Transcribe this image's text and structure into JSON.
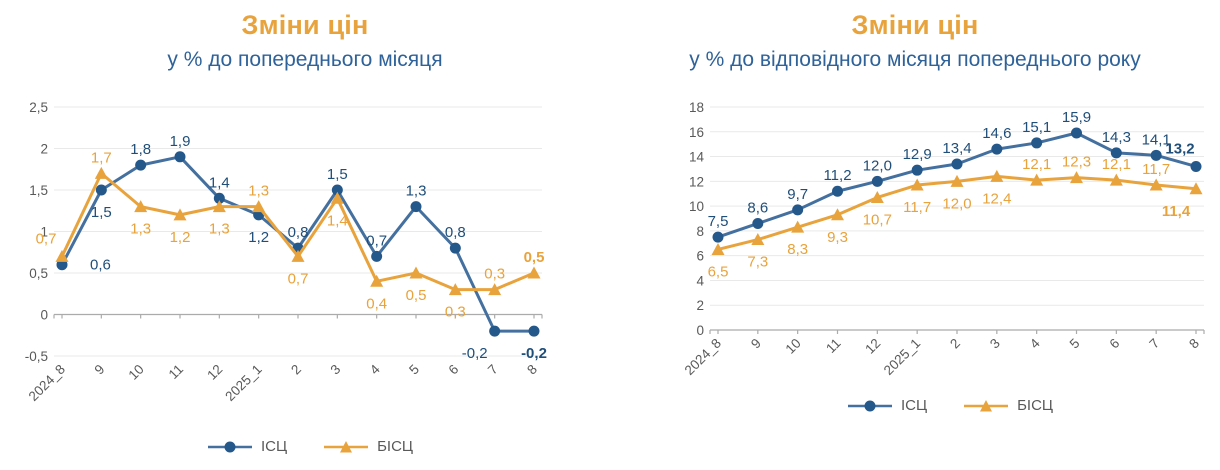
{
  "colors": {
    "title_orange": "#E8A33C",
    "subtitle_blue": "#2E6299",
    "series_blue_line": "#4470A0",
    "series_blue_marker": "#24578A",
    "series_blue_label": "#1F4E79",
    "series_orange": "#E8A33C",
    "axis_gray": "#ABABAB",
    "grid_gray": "#E9E9E9",
    "tick_text_gray": "#595959"
  },
  "chart_data": [
    {
      "type": "line",
      "title": "Зміни цін",
      "subtitle": "у % до попереднього місяця",
      "categories": [
        "2024_8",
        "9",
        "10",
        "11",
        "12",
        "2025_1",
        "2",
        "3",
        "4",
        "5",
        "6",
        "7",
        "8"
      ],
      "series": [
        {
          "name": "ІСЦ",
          "marker": "circle",
          "line_color": "#4470A0",
          "marker_color": "#24578A",
          "label_color": "#1F4E79",
          "values": [
            0.6,
            1.5,
            1.8,
            1.9,
            1.4,
            1.2,
            0.8,
            1.5,
            0.7,
            1.3,
            0.8,
            -0.2,
            -0.2
          ],
          "label_pos": [
            "right",
            "below",
            "above",
            "above",
            "above",
            "below",
            "above",
            "above",
            "above",
            "above",
            "above",
            "below-left",
            "below"
          ]
        },
        {
          "name": "БІСЦ",
          "marker": "triangle",
          "line_color": "#E8A33C",
          "marker_color": "#E8A33C",
          "label_color": "#E8A33C",
          "values": [
            0.7,
            1.7,
            1.3,
            1.2,
            1.3,
            1.3,
            0.7,
            1.4,
            0.4,
            0.5,
            0.3,
            0.3,
            0.5
          ],
          "label_pos": [
            "above-left",
            "above",
            "below",
            "below",
            "below",
            "above",
            "below",
            "below",
            "below",
            "below",
            "below",
            "above",
            "above"
          ]
        }
      ],
      "ylim": [
        -0.5,
        2.5
      ],
      "ytick_step": 0.5,
      "grid": true,
      "legend_position": "bottom",
      "bold_last_label": true
    },
    {
      "type": "line",
      "title": "Зміни цін",
      "subtitle": "у % до відповідного місяця попереднього року",
      "categories": [
        "2024_8",
        "9",
        "10",
        "11",
        "12",
        "2025_1",
        "2",
        "3",
        "4",
        "5",
        "6",
        "7",
        "8"
      ],
      "series": [
        {
          "name": "ІСЦ",
          "marker": "circle",
          "line_color": "#4470A0",
          "marker_color": "#24578A",
          "label_color": "#1F4E79",
          "values": [
            7.5,
            8.6,
            9.7,
            11.2,
            12.0,
            12.9,
            13.4,
            14.6,
            15.1,
            15.9,
            14.3,
            14.1,
            13.2
          ],
          "label_pos": [
            "above",
            "above",
            "above",
            "above",
            "above",
            "above",
            "above",
            "above",
            "above",
            "above",
            "above",
            "above",
            "above-left"
          ]
        },
        {
          "name": "БІСЦ",
          "marker": "triangle",
          "line_color": "#E8A33C",
          "marker_color": "#E8A33C",
          "label_color": "#E8A33C",
          "values": [
            6.5,
            7.3,
            8.3,
            9.3,
            10.7,
            11.7,
            12.0,
            12.4,
            12.1,
            12.3,
            12.1,
            11.7,
            11.4
          ],
          "label_pos": [
            "below",
            "below",
            "below",
            "below",
            "below",
            "below",
            "below",
            "below",
            "above",
            "above",
            "above",
            "above",
            "below-left"
          ]
        }
      ],
      "ylim": [
        0,
        18
      ],
      "ytick_step": 2,
      "grid": true,
      "legend_position": "bottom",
      "bold_last_label": true
    }
  ]
}
